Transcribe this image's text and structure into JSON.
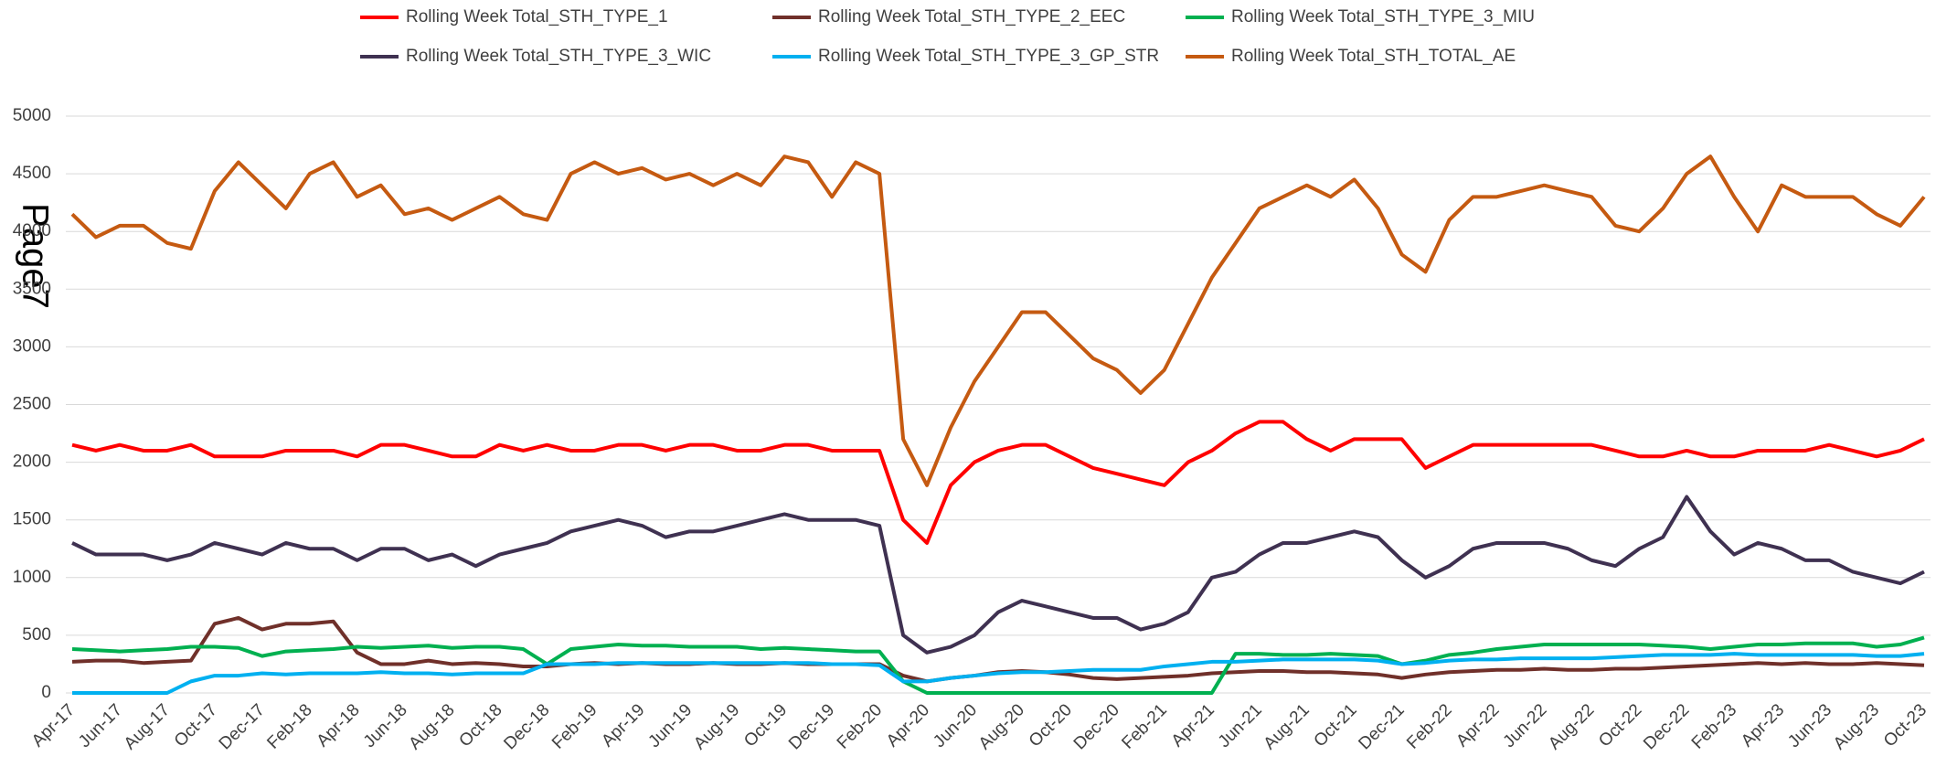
{
  "page_label": "Page7",
  "chart_data": {
    "type": "line",
    "categories": [
      "Apr-17",
      null,
      "Jun-17",
      null,
      "Aug-17",
      null,
      "Oct-17",
      null,
      "Dec-17",
      null,
      "Feb-18",
      null,
      "Apr-18",
      null,
      "Jun-18",
      null,
      "Aug-18",
      null,
      "Oct-18",
      null,
      "Dec-18",
      null,
      "Feb-19",
      null,
      "Apr-19",
      null,
      "Jun-19",
      null,
      "Aug-19",
      null,
      "Oct-19",
      null,
      "Dec-19",
      null,
      "Feb-20",
      null,
      "Apr-20",
      null,
      "Jun-20",
      null,
      "Aug-20",
      null,
      "Oct-20",
      null,
      "Dec-20",
      null,
      "Feb-21",
      null,
      "Apr-21",
      null,
      "Jun-21",
      null,
      "Aug-21",
      null,
      "Oct-21",
      null,
      "Dec-21",
      null,
      "Feb-22",
      null,
      "Apr-22",
      null,
      "Jun-22",
      null,
      "Aug-22",
      null,
      "Oct-22",
      null,
      "Dec-22",
      null,
      "Feb-23",
      null,
      "Apr-23",
      null,
      "Jun-23",
      null,
      "Aug-23",
      null,
      "Oct-23"
    ],
    "series": [
      {
        "name": "Rolling Week Total_STH_TYPE_1",
        "color": "#ff0000",
        "values": [
          2150,
          2100,
          2150,
          2100,
          2100,
          2150,
          2050,
          2050,
          2050,
          2100,
          2100,
          2100,
          2050,
          2150,
          2150,
          2100,
          2050,
          2050,
          2150,
          2100,
          2150,
          2100,
          2100,
          2150,
          2150,
          2100,
          2150,
          2150,
          2100,
          2100,
          2150,
          2150,
          2100,
          2100,
          2100,
          1500,
          1300,
          1800,
          2000,
          2100,
          2150,
          2150,
          2050,
          1950,
          1900,
          1850,
          1800,
          2000,
          2100,
          2250,
          2350,
          2350,
          2200,
          2100,
          2200,
          2200,
          2200,
          1950,
          2050,
          2150,
          2150,
          2150,
          2150,
          2150,
          2150,
          2100,
          2050,
          2050,
          2100,
          2050,
          2050,
          2100,
          2100,
          2100,
          2150,
          2100,
          2050,
          2100,
          2200
        ]
      },
      {
        "name": "Rolling Week Total_STH_TYPE_2_EEC",
        "color": "#70302a",
        "values": [
          270,
          280,
          280,
          260,
          270,
          280,
          600,
          650,
          550,
          600,
          600,
          620,
          350,
          250,
          250,
          280,
          250,
          260,
          250,
          230,
          230,
          250,
          260,
          250,
          260,
          250,
          250,
          260,
          250,
          250,
          260,
          250,
          250,
          250,
          250,
          150,
          100,
          130,
          150,
          180,
          190,
          180,
          160,
          130,
          120,
          130,
          140,
          150,
          170,
          180,
          190,
          190,
          180,
          180,
          170,
          160,
          130,
          160,
          180,
          190,
          200,
          200,
          210,
          200,
          200,
          210,
          210,
          220,
          230,
          240,
          250,
          260,
          250,
          260,
          250,
          250,
          260,
          250,
          240
        ]
      },
      {
        "name": "Rolling Week Total_STH_TYPE_3_MIU",
        "color": "#00b050",
        "values": [
          380,
          370,
          360,
          370,
          380,
          400,
          400,
          390,
          320,
          360,
          370,
          380,
          400,
          390,
          400,
          410,
          390,
          400,
          400,
          380,
          250,
          380,
          400,
          420,
          410,
          410,
          400,
          400,
          400,
          380,
          390,
          380,
          370,
          360,
          360,
          100,
          0,
          0,
          0,
          0,
          0,
          0,
          0,
          0,
          0,
          0,
          0,
          0,
          0,
          340,
          340,
          330,
          330,
          340,
          330,
          320,
          250,
          280,
          330,
          350,
          380,
          400,
          420,
          420,
          420,
          420,
          420,
          410,
          400,
          380,
          400,
          420,
          420,
          430,
          430,
          430,
          400,
          420,
          480
        ]
      },
      {
        "name": "Rolling Week Total_STH_TYPE_3_WIC",
        "color": "#3f3151",
        "values": [
          1300,
          1200,
          1200,
          1200,
          1150,
          1200,
          1300,
          1250,
          1200,
          1300,
          1250,
          1250,
          1150,
          1250,
          1250,
          1150,
          1200,
          1100,
          1200,
          1250,
          1300,
          1400,
          1450,
          1500,
          1450,
          1350,
          1400,
          1400,
          1450,
          1500,
          1550,
          1500,
          1500,
          1500,
          1450,
          500,
          350,
          400,
          500,
          700,
          800,
          750,
          700,
          650,
          650,
          550,
          600,
          700,
          1000,
          1050,
          1200,
          1300,
          1300,
          1350,
          1400,
          1350,
          1150,
          1000,
          1100,
          1250,
          1300,
          1300,
          1300,
          1250,
          1150,
          1100,
          1250,
          1350,
          1700,
          1400,
          1200,
          1300,
          1250,
          1150,
          1150,
          1050,
          1000,
          950,
          1050
        ]
      },
      {
        "name": "Rolling Week Total_STH_TYPE_3_GP_STR",
        "color": "#00b0f0",
        "values": [
          0,
          0,
          0,
          0,
          0,
          100,
          150,
          150,
          170,
          160,
          170,
          170,
          170,
          180,
          170,
          170,
          160,
          170,
          170,
          170,
          250,
          250,
          250,
          260,
          260,
          260,
          260,
          260,
          260,
          260,
          260,
          260,
          250,
          250,
          240,
          100,
          100,
          130,
          150,
          170,
          180,
          180,
          190,
          200,
          200,
          200,
          230,
          250,
          270,
          270,
          280,
          290,
          290,
          290,
          290,
          280,
          250,
          260,
          280,
          290,
          290,
          300,
          300,
          300,
          300,
          310,
          320,
          330,
          330,
          330,
          340,
          330,
          330,
          330,
          330,
          330,
          320,
          320,
          340
        ]
      },
      {
        "name": "Rolling Week Total_STH_TOTAL_AE",
        "color": "#c55a11",
        "values": [
          4150,
          3950,
          4050,
          4050,
          3900,
          3850,
          4350,
          4600,
          4400,
          4200,
          4500,
          4600,
          4300,
          4400,
          4150,
          4200,
          4100,
          4200,
          4300,
          4150,
          4100,
          4500,
          4600,
          4500,
          4550,
          4450,
          4500,
          4400,
          4500,
          4400,
          4650,
          4600,
          4300,
          4600,
          4500,
          2200,
          1800,
          2300,
          2700,
          3000,
          3300,
          3300,
          3100,
          2900,
          2800,
          2600,
          2800,
          3200,
          3600,
          3900,
          4200,
          4300,
          4400,
          4300,
          4450,
          4200,
          3800,
          3650,
          4100,
          4300,
          4300,
          4350,
          4400,
          4350,
          4300,
          4050,
          4000,
          4200,
          4500,
          4650,
          4300,
          4000,
          4400,
          4300,
          4300,
          4300,
          4150,
          4050,
          4300
        ]
      }
    ],
    "ylim": [
      0,
      5000
    ],
    "yticks": [
      0,
      500,
      1000,
      1500,
      2000,
      2500,
      3000,
      3500,
      4000,
      4500,
      5000
    ],
    "grid": true
  }
}
